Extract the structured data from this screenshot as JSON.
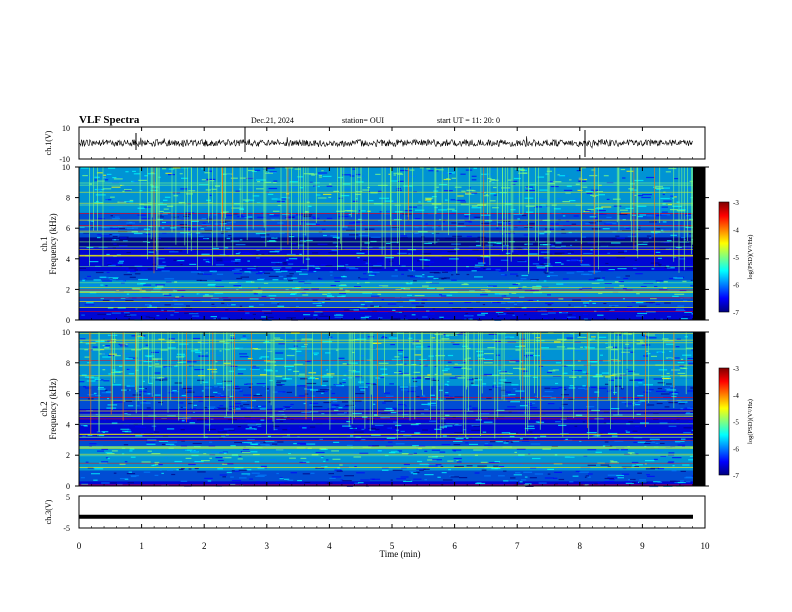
{
  "header": {
    "title": "VLF Spectra",
    "date": "Dec.21, 2024",
    "station": "station= OUI",
    "start": "start  UT  =   11: 20: 0"
  },
  "colors": {
    "background": "#ffffff",
    "axis": "#000000",
    "colormap": [
      "#00007f",
      "#0000ff",
      "#0080ff",
      "#00ffff",
      "#80ff80",
      "#ffff00",
      "#ff8000",
      "#ff0000",
      "#7f0000"
    ]
  },
  "chart_data": [
    {
      "type": "line",
      "panel": "ch1-waveform",
      "ylabel": "ch.1(V)",
      "xlim": [
        0,
        10
      ],
      "ylim": [
        -10,
        10
      ],
      "yticks": [
        "10",
        "-10"
      ],
      "note": "dense noise trace near 0 V"
    },
    {
      "type": "heatmap",
      "panel": "ch1-spectrogram",
      "ylabel_channel": "ch.1",
      "ylabel": "Frequency (kHz)",
      "xlim": [
        0,
        10
      ],
      "ylim": [
        0,
        10
      ],
      "yticks": [
        "0",
        "2",
        "4",
        "6",
        "8",
        "10"
      ],
      "colorbar": {
        "label": "log(PSD)(V²/Hz)",
        "range": [
          -7,
          -3
        ],
        "ticks": [
          "-3",
          "-4",
          "-5",
          "-6",
          "-7"
        ]
      }
    },
    {
      "type": "heatmap",
      "panel": "ch2-spectrogram",
      "ylabel_channel": "ch.2",
      "ylabel": "Frequency (kHz)",
      "xlim": [
        0,
        10
      ],
      "ylim": [
        0,
        10
      ],
      "yticks": [
        "0",
        "2",
        "4",
        "6",
        "8",
        "10"
      ],
      "colorbar": {
        "label": "log(PSD)(V²/Hz)",
        "range": [
          -7,
          -3
        ],
        "ticks": [
          "-3",
          "-4",
          "-5",
          "-6",
          "-7"
        ]
      }
    },
    {
      "type": "line",
      "panel": "ch3-waveform",
      "ylabel": "ch.3(V)",
      "xlim": [
        0,
        10
      ],
      "ylim": [
        -5,
        5
      ],
      "yticks": [
        "5",
        "-5"
      ],
      "constant_value": -1.5
    }
  ],
  "xaxis": {
    "label": "Time (min)",
    "ticks": [
      "0",
      "1",
      "2",
      "3",
      "4",
      "5",
      "6",
      "7",
      "8",
      "9",
      "10"
    ]
  }
}
